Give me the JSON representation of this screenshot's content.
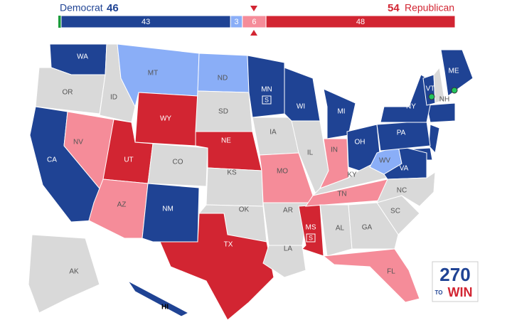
{
  "header": {
    "dem_label": "Democrat",
    "dem_total": 46,
    "rep_total": 54,
    "rep_label": "Republican",
    "segments": [
      {
        "value": 43,
        "color": "#1f4394"
      },
      {
        "value": 3,
        "color": "#8aaef7"
      },
      {
        "value": 6,
        "color": "#f58c99"
      },
      {
        "value": 48,
        "color": "#d22532"
      }
    ]
  },
  "states": [
    {
      "label": "WA",
      "color": "#1f4394"
    },
    {
      "label": "OR",
      "color": "#d9d9d9"
    },
    {
      "label": "CA",
      "color": "#1f4394"
    },
    {
      "label": "NV",
      "color": "#f58c99"
    },
    {
      "label": "ID",
      "color": "#d9d9d9"
    },
    {
      "label": "MT",
      "color": "#8aaef7"
    },
    {
      "label": "WY",
      "color": "#d22532"
    },
    {
      "label": "UT",
      "color": "#d22532"
    },
    {
      "label": "AZ",
      "color": "#f58c99"
    },
    {
      "label": "CO",
      "color": "#d9d9d9"
    },
    {
      "label": "NM",
      "color": "#1f4394"
    },
    {
      "label": "ND",
      "color": "#8aaef7"
    },
    {
      "label": "SD",
      "color": "#d9d9d9"
    },
    {
      "label": "NE",
      "color": "#d22532"
    },
    {
      "label": "KS",
      "color": "#d9d9d9"
    },
    {
      "label": "OK",
      "color": "#d9d9d9"
    },
    {
      "label": "TX",
      "color": "#d22532"
    },
    {
      "label": "MN",
      "color": "#1f4394",
      "marker": "S"
    },
    {
      "label": "IA",
      "color": "#d9d9d9"
    },
    {
      "label": "MO",
      "color": "#f58c99"
    },
    {
      "label": "AR",
      "color": "#d9d9d9"
    },
    {
      "label": "LA",
      "color": "#d9d9d9"
    },
    {
      "label": "WI",
      "color": "#1f4394"
    },
    {
      "label": "IL",
      "color": "#d9d9d9"
    },
    {
      "label": "MS",
      "color": "#d22532",
      "marker": "S"
    },
    {
      "label": "MI",
      "color": "#1f4394"
    },
    {
      "label": "IN",
      "color": "#f58c99"
    },
    {
      "label": "KY",
      "color": "#d9d9d9"
    },
    {
      "label": "TN",
      "color": "#f58c99"
    },
    {
      "label": "AL",
      "color": "#d9d9d9"
    },
    {
      "label": "OH",
      "color": "#1f4394"
    },
    {
      "label": "WV",
      "color": "#8aaef7"
    },
    {
      "label": "VA",
      "color": "#1f4394"
    },
    {
      "label": "NC",
      "color": "#d9d9d9"
    },
    {
      "label": "SC",
      "color": "#d9d9d9"
    },
    {
      "label": "GA",
      "color": "#d9d9d9"
    },
    {
      "label": "FL",
      "color": "#f58c99"
    },
    {
      "label": "PA",
      "color": "#1f4394"
    },
    {
      "label": "NY",
      "color": "#1f4394"
    },
    {
      "label": "ME",
      "color": "#1f4394"
    },
    {
      "label": "VT",
      "color": "#1f4394"
    },
    {
      "label": "NH",
      "color": "#d9d9d9"
    },
    {
      "label": "AK",
      "color": "#d9d9d9"
    },
    {
      "label": "HI",
      "color": "#1f4394"
    }
  ],
  "logo": {
    "number": "270",
    "to": "TO",
    "win": "WIN"
  }
}
